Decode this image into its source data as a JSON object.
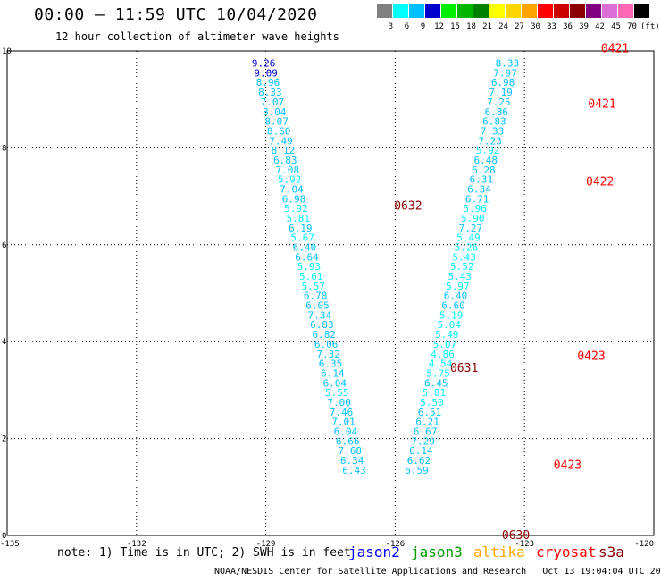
{
  "header": {
    "title": "00:00 – 11:59 UTC 10/04/2020",
    "subtitle": "12 hour collection of altimeter wave heights"
  },
  "colorbar": {
    "labels": [
      "3",
      "6",
      "9",
      "12",
      "15",
      "18",
      "21",
      "24",
      "27",
      "30",
      "33",
      "36",
      "39",
      "42",
      "45",
      "70",
      "(ft)"
    ],
    "colors": [
      "#808080",
      "#00ffff",
      "#00bfff",
      "#0000cd",
      "#00ee00",
      "#00b400",
      "#008000",
      "#ffff00",
      "#ffd700",
      "#ffa500",
      "#ff0000",
      "#cd0000",
      "#8b0000",
      "#800080",
      "#da70d6",
      "#ff69b4",
      "#000000"
    ]
  },
  "footer": {
    "note": "note: 1) Time is in UTC; 2) SWH is in feet",
    "satellites": [
      {
        "name": "jason2",
        "color": "#0000ff"
      },
      {
        "name": "jason3",
        "color": "#00a000"
      },
      {
        "name": "altika",
        "color": "#ffa500"
      },
      {
        "name": "cryosat",
        "color": "#ff0000"
      },
      {
        "name": "s3a",
        "color": "#8b0000"
      }
    ],
    "credit": "NOAA/NESDIS Center for Satellite Applications and Research   Oct 13 19:04:04 UTC 2020"
  },
  "chart_data": {
    "type": "scatter",
    "xlim": [
      -135,
      -120
    ],
    "ylim": [
      0,
      10
    ],
    "x_ticks": [
      "-135",
      "-132",
      "-129",
      "-126",
      "-123",
      "-120"
    ],
    "y_ticks": [
      "0",
      "2",
      "4",
      "6",
      "8",
      "10"
    ],
    "grid": true,
    "series": [
      {
        "name": "s3a",
        "points": [
          {
            "x": -129.05,
            "y": 9.75,
            "v": "9.26",
            "c": "#0000cd"
          },
          {
            "x": -129.0,
            "y": 9.55,
            "v": "9.09",
            "c": "#0000cd"
          },
          {
            "x": -128.95,
            "y": 9.35,
            "v": "8.96",
            "c": "#00bfff"
          },
          {
            "x": -128.9,
            "y": 9.15,
            "v": "8.33",
            "c": "#00bfff"
          },
          {
            "x": -128.85,
            "y": 8.95,
            "v": "7.07",
            "c": "#00bfff"
          },
          {
            "x": -128.8,
            "y": 8.75,
            "v": "8.04",
            "c": "#00bfff"
          },
          {
            "x": -128.75,
            "y": 8.55,
            "v": "8.07",
            "c": "#00bfff"
          },
          {
            "x": -128.7,
            "y": 8.35,
            "v": "8.60",
            "c": "#00bfff"
          },
          {
            "x": -128.65,
            "y": 8.15,
            "v": "7.49",
            "c": "#00bfff"
          },
          {
            "x": -128.6,
            "y": 7.95,
            "v": "8.12",
            "c": "#00bfff"
          },
          {
            "x": -128.55,
            "y": 7.75,
            "v": "6.83",
            "c": "#00bfff"
          },
          {
            "x": -128.5,
            "y": 7.55,
            "v": "7.08",
            "c": "#00bfff"
          },
          {
            "x": -128.45,
            "y": 7.35,
            "v": "5.92",
            "c": "#00ffff"
          },
          {
            "x": -128.4,
            "y": 7.15,
            "v": "7.04",
            "c": "#00bfff"
          },
          {
            "x": -128.35,
            "y": 6.95,
            "v": "6.98",
            "c": "#00bfff"
          },
          {
            "x": -128.3,
            "y": 6.75,
            "v": "5.92",
            "c": "#00ffff"
          },
          {
            "x": -128.25,
            "y": 6.55,
            "v": "5.81",
            "c": "#00ffff"
          },
          {
            "x": -128.2,
            "y": 6.35,
            "v": "6.19",
            "c": "#00bfff"
          },
          {
            "x": -128.15,
            "y": 6.15,
            "v": "5.67",
            "c": "#00ffff"
          },
          {
            "x": -128.1,
            "y": 5.95,
            "v": "6.40",
            "c": "#00bfff"
          },
          {
            "x": -128.05,
            "y": 5.75,
            "v": "6.64",
            "c": "#00bfff"
          },
          {
            "x": -128.0,
            "y": 5.55,
            "v": "5.93",
            "c": "#00ffff"
          },
          {
            "x": -127.95,
            "y": 5.35,
            "v": "5.61",
            "c": "#00ffff"
          },
          {
            "x": -127.9,
            "y": 5.15,
            "v": "5.57",
            "c": "#00ffff"
          },
          {
            "x": -127.85,
            "y": 4.95,
            "v": "6.78",
            "c": "#00bfff"
          },
          {
            "x": -127.8,
            "y": 4.75,
            "v": "6.05",
            "c": "#00bfff"
          },
          {
            "x": -127.75,
            "y": 4.55,
            "v": "7.34",
            "c": "#00bfff"
          },
          {
            "x": -127.7,
            "y": 4.35,
            "v": "6.83",
            "c": "#00bfff"
          },
          {
            "x": -127.65,
            "y": 4.15,
            "v": "6.82",
            "c": "#00bfff"
          },
          {
            "x": -127.6,
            "y": 3.95,
            "v": "6.06",
            "c": "#00bfff"
          },
          {
            "x": -127.55,
            "y": 3.75,
            "v": "7.32",
            "c": "#00bfff"
          },
          {
            "x": -127.5,
            "y": 3.55,
            "v": "6.35",
            "c": "#00bfff"
          },
          {
            "x": -127.45,
            "y": 3.35,
            "v": "6.14",
            "c": "#00bfff"
          },
          {
            "x": -127.4,
            "y": 3.15,
            "v": "6.04",
            "c": "#00bfff"
          },
          {
            "x": -127.35,
            "y": 2.95,
            "v": "5.55",
            "c": "#00ffff"
          },
          {
            "x": -127.3,
            "y": 2.75,
            "v": "7.00",
            "c": "#00bfff"
          },
          {
            "x": -127.25,
            "y": 2.55,
            "v": "7.46",
            "c": "#00bfff"
          },
          {
            "x": -127.2,
            "y": 2.35,
            "v": "7.01",
            "c": "#00bfff"
          },
          {
            "x": -127.15,
            "y": 2.15,
            "v": "6.04",
            "c": "#00bfff"
          },
          {
            "x": -127.1,
            "y": 1.95,
            "v": "6.66",
            "c": "#00bfff"
          },
          {
            "x": -127.05,
            "y": 1.75,
            "v": "7.68",
            "c": "#00bfff"
          },
          {
            "x": -127.0,
            "y": 1.55,
            "v": "6.34",
            "c": "#00bfff"
          },
          {
            "x": -126.95,
            "y": 1.35,
            "v": "6.43",
            "c": "#00bfff"
          }
        ]
      },
      {
        "name": "cryosat",
        "points": [
          {
            "x": -123.4,
            "y": 9.75,
            "v": "8.33",
            "c": "#00bfff"
          },
          {
            "x": -123.45,
            "y": 9.55,
            "v": "7.97",
            "c": "#00bfff"
          },
          {
            "x": -123.5,
            "y": 9.35,
            "v": "6.98",
            "c": "#00bfff"
          },
          {
            "x": -123.55,
            "y": 9.15,
            "v": "7.19",
            "c": "#00bfff"
          },
          {
            "x": -123.6,
            "y": 8.95,
            "v": "7.25",
            "c": "#00bfff"
          },
          {
            "x": -123.65,
            "y": 8.75,
            "v": "6.86",
            "c": "#00bfff"
          },
          {
            "x": -123.7,
            "y": 8.55,
            "v": "6.83",
            "c": "#00bfff"
          },
          {
            "x": -123.75,
            "y": 8.35,
            "v": "7.33",
            "c": "#00bfff"
          },
          {
            "x": -123.8,
            "y": 8.15,
            "v": "7.23",
            "c": "#00bfff"
          },
          {
            "x": -123.85,
            "y": 7.95,
            "v": "5.92",
            "c": "#00ffff"
          },
          {
            "x": -123.9,
            "y": 7.75,
            "v": "6.48",
            "c": "#00bfff"
          },
          {
            "x": -123.95,
            "y": 7.55,
            "v": "6.28",
            "c": "#00bfff"
          },
          {
            "x": -124.0,
            "y": 7.35,
            "v": "6.31",
            "c": "#00bfff"
          },
          {
            "x": -124.05,
            "y": 7.15,
            "v": "6.34",
            "c": "#00bfff"
          },
          {
            "x": -124.1,
            "y": 6.95,
            "v": "6.71",
            "c": "#00bfff"
          },
          {
            "x": -124.15,
            "y": 6.75,
            "v": "5.96",
            "c": "#00ffff"
          },
          {
            "x": -124.2,
            "y": 6.55,
            "v": "5.90",
            "c": "#00ffff"
          },
          {
            "x": -124.25,
            "y": 6.35,
            "v": "7.27",
            "c": "#00bfff"
          },
          {
            "x": -124.3,
            "y": 6.15,
            "v": "5.49",
            "c": "#00ffff"
          },
          {
            "x": -124.35,
            "y": 5.95,
            "v": "5.26",
            "c": "#00ffff"
          },
          {
            "x": -124.4,
            "y": 5.75,
            "v": "5.43",
            "c": "#00ffff"
          },
          {
            "x": -124.45,
            "y": 5.55,
            "v": "5.52",
            "c": "#00ffff"
          },
          {
            "x": -124.5,
            "y": 5.35,
            "v": "5.43",
            "c": "#00ffff"
          },
          {
            "x": -124.55,
            "y": 5.15,
            "v": "5.97",
            "c": "#00ffff"
          },
          {
            "x": -124.6,
            "y": 4.95,
            "v": "6.40",
            "c": "#00bfff"
          },
          {
            "x": -124.65,
            "y": 4.75,
            "v": "6.60",
            "c": "#00bfff"
          },
          {
            "x": -124.7,
            "y": 4.55,
            "v": "5.19",
            "c": "#00ffff"
          },
          {
            "x": -124.75,
            "y": 4.35,
            "v": "5.04",
            "c": "#00ffff"
          },
          {
            "x": -124.8,
            "y": 4.15,
            "v": "5.49",
            "c": "#00ffff"
          },
          {
            "x": -124.85,
            "y": 3.95,
            "v": "5.07",
            "c": "#00ffff"
          },
          {
            "x": -124.9,
            "y": 3.75,
            "v": "4.86",
            "c": "#00ffff"
          },
          {
            "x": -124.95,
            "y": 3.55,
            "v": "4.54",
            "c": "#00ffff"
          },
          {
            "x": -125.0,
            "y": 3.35,
            "v": "5.75",
            "c": "#00ffff"
          },
          {
            "x": -125.05,
            "y": 3.15,
            "v": "6.45",
            "c": "#00bfff"
          },
          {
            "x": -125.1,
            "y": 2.95,
            "v": "5.81",
            "c": "#00ffff"
          },
          {
            "x": -125.15,
            "y": 2.75,
            "v": "5.50",
            "c": "#00ffff"
          },
          {
            "x": -125.2,
            "y": 2.55,
            "v": "6.51",
            "c": "#00bfff"
          },
          {
            "x": -125.25,
            "y": 2.35,
            "v": "6.21",
            "c": "#00bfff"
          },
          {
            "x": -125.3,
            "y": 2.15,
            "v": "6.67",
            "c": "#00bfff"
          },
          {
            "x": -125.35,
            "y": 1.95,
            "v": "7.29",
            "c": "#00bfff"
          },
          {
            "x": -125.4,
            "y": 1.75,
            "v": "6.14",
            "c": "#00bfff"
          },
          {
            "x": -125.45,
            "y": 1.55,
            "v": "6.62",
            "c": "#00bfff"
          },
          {
            "x": -125.5,
            "y": 1.35,
            "v": "6.59",
            "c": "#00bfff"
          }
        ]
      }
    ],
    "time_labels": [
      {
        "x": -125.7,
        "y": 6.8,
        "v": "0632",
        "c": "#8b0000"
      },
      {
        "x": -124.4,
        "y": 3.45,
        "v": "0631",
        "c": "#8b0000"
      },
      {
        "x": -123.2,
        "y": 0.0,
        "v": "0630",
        "c": "#8b0000"
      },
      {
        "x": -120.9,
        "y": 10.05,
        "v": "0421",
        "c": "#ff0000"
      },
      {
        "x": -121.2,
        "y": 8.9,
        "v": "0421",
        "c": "#ff0000"
      },
      {
        "x": -121.25,
        "y": 7.3,
        "v": "0422",
        "c": "#ff0000"
      },
      {
        "x": -121.45,
        "y": 3.7,
        "v": "0423",
        "c": "#ff0000"
      },
      {
        "x": -122.0,
        "y": 1.45,
        "v": "0423",
        "c": "#ff0000"
      }
    ]
  }
}
